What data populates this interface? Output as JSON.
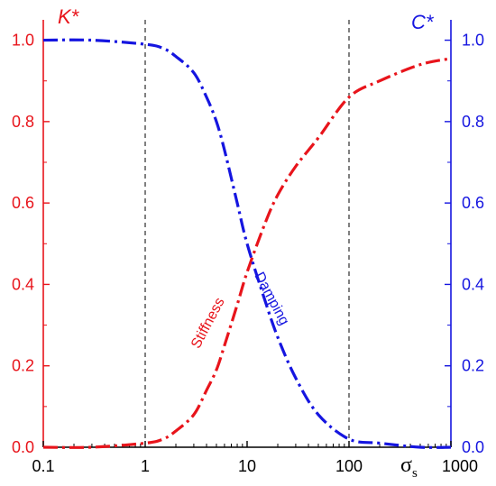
{
  "chart_data": {
    "type": "line",
    "x_scale": "log",
    "xlim": [
      0.1,
      1000
    ],
    "ylim": [
      0,
      1.05
    ],
    "x_ticks": [
      "0.1",
      "1",
      "10",
      "100",
      "1000"
    ],
    "x_tick_values": [
      0.1,
      1,
      10,
      100,
      1000
    ],
    "xlabel": "σ",
    "xlabel_sub": "s",
    "left_axis": {
      "label": "K*",
      "color": "#e8141b",
      "ticks": [
        "0.0",
        "0.2",
        "0.4",
        "0.6",
        "0.8",
        "1.0"
      ],
      "tick_values": [
        0,
        0.2,
        0.4,
        0.6,
        0.8,
        1.0
      ]
    },
    "right_axis": {
      "label": "C*",
      "color": "#1515e0",
      "ticks": [
        "0.0",
        "0.2",
        "0.4",
        "0.6",
        "0.8",
        "1.0"
      ],
      "tick_values": [
        0,
        0.2,
        0.4,
        0.6,
        0.8,
        1.0
      ]
    },
    "reference_lines_x": [
      1,
      100
    ],
    "series": [
      {
        "name": "Stiffness",
        "axis": "left",
        "color": "#e8141b",
        "line_style": "dash-dot",
        "x": [
          0.1,
          0.3,
          1,
          1.5,
          2,
          3,
          4,
          5,
          6,
          8,
          10,
          15,
          20,
          30,
          50,
          100,
          200,
          500,
          1000
        ],
        "y": [
          0.0,
          0.0,
          0.01,
          0.02,
          0.04,
          0.08,
          0.14,
          0.19,
          0.25,
          0.35,
          0.43,
          0.55,
          0.62,
          0.69,
          0.76,
          0.86,
          0.9,
          0.94,
          0.955
        ]
      },
      {
        "name": "Damping",
        "axis": "right",
        "color": "#1515e0",
        "line_style": "dash-dot",
        "x": [
          0.1,
          0.3,
          1,
          1.5,
          2,
          3,
          4,
          5,
          6,
          8,
          10,
          15,
          20,
          30,
          50,
          100,
          200,
          500,
          1000
        ],
        "y": [
          1.0,
          1.0,
          0.99,
          0.98,
          0.96,
          0.92,
          0.86,
          0.8,
          0.73,
          0.6,
          0.5,
          0.36,
          0.27,
          0.17,
          0.08,
          0.02,
          0.01,
          0.0,
          0.0
        ]
      }
    ],
    "annotations": [
      {
        "text": "Stiffness",
        "color": "#e8141b",
        "x": 4.5,
        "y": 0.3,
        "angle_deg": -62
      },
      {
        "text": "Damping",
        "color": "#1515e0",
        "x": 16,
        "y": 0.36,
        "angle_deg": 62
      }
    ]
  }
}
